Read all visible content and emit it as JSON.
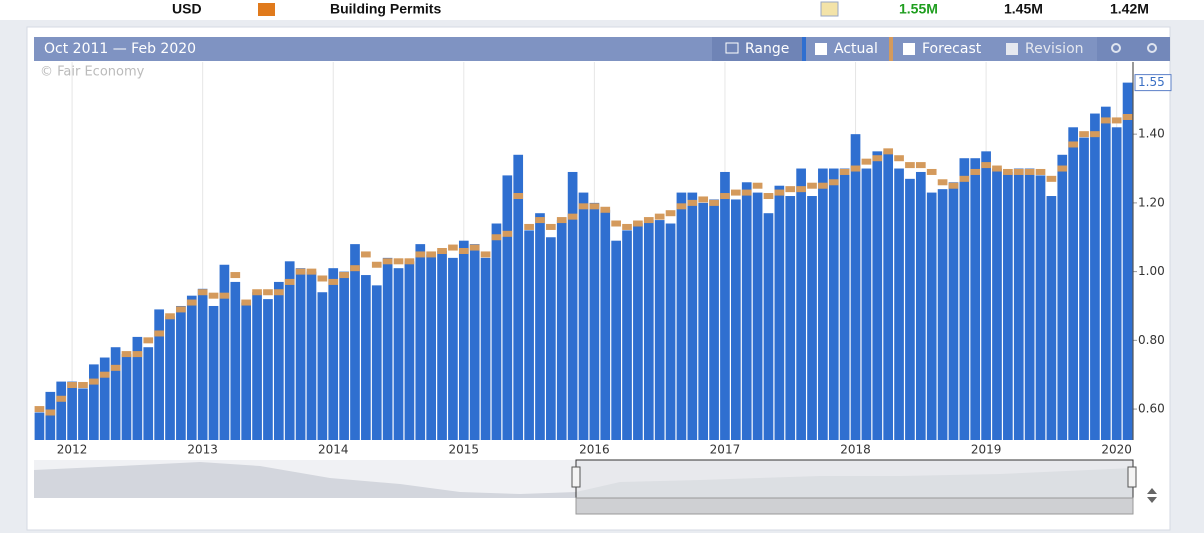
{
  "header": {
    "currency": "USD",
    "event": "Building Permits",
    "actual": "1.55M",
    "forecast": "1.45M",
    "previous": "1.42M"
  },
  "toolbar": {
    "range_text": "Oct 2011 — Feb 2020",
    "range_button": "Range",
    "revision": "Revision"
  },
  "chart_data": {
    "type": "bar",
    "watermark": "© Fair Economy",
    "categories": [
      null,
      null,
      null,
      "2012",
      null,
      null,
      null,
      null,
      null,
      null,
      null,
      null,
      null,
      null,
      null,
      "2013",
      null,
      null,
      null,
      null,
      null,
      null,
      null,
      null,
      null,
      null,
      null,
      "2014",
      null,
      null,
      null,
      null,
      null,
      null,
      null,
      null,
      null,
      null,
      null,
      "2015",
      null,
      null,
      null,
      null,
      null,
      null,
      null,
      null,
      null,
      null,
      null,
      "2016",
      null,
      null,
      null,
      null,
      null,
      null,
      null,
      null,
      null,
      null,
      null,
      "2017",
      null,
      null,
      null,
      null,
      null,
      null,
      null,
      null,
      null,
      null,
      null,
      "2018",
      null,
      null,
      null,
      null,
      null,
      null,
      null,
      null,
      null,
      null,
      null,
      "2019",
      null,
      null,
      null,
      null,
      null,
      null,
      null,
      null,
      null,
      null,
      null,
      "2020",
      null
    ],
    "series": [
      {
        "name": "Actual",
        "color": "#2f6fd0",
        "values": [
          0.59,
          0.65,
          0.68,
          0.68,
          0.66,
          0.73,
          0.75,
          0.78,
          0.76,
          0.81,
          0.78,
          0.89,
          0.87,
          0.9,
          0.93,
          0.95,
          0.9,
          1.02,
          0.97,
          0.91,
          0.94,
          0.92,
          0.97,
          1.03,
          1.01,
          1.0,
          0.94,
          1.01,
          1.0,
          1.08,
          0.99,
          0.96,
          1.04,
          1.01,
          1.03,
          1.08,
          1.05,
          1.06,
          1.04,
          1.09,
          1.08,
          1.04,
          1.14,
          1.28,
          1.34,
          1.12,
          1.17,
          1.1,
          1.15,
          1.29,
          1.23,
          1.2,
          1.18,
          1.09,
          1.12,
          1.14,
          1.15,
          1.15,
          1.14,
          1.23,
          1.23,
          1.2,
          1.21,
          1.29,
          1.21,
          1.26,
          1.23,
          1.17,
          1.25,
          1.22,
          1.3,
          1.22,
          1.3,
          1.3,
          1.3,
          1.4,
          1.3,
          1.35,
          1.35,
          1.3,
          1.27,
          1.29,
          1.23,
          1.24,
          1.26,
          1.33,
          1.33,
          1.35,
          1.3,
          1.29,
          1.3,
          1.3,
          1.28,
          1.22,
          1.34,
          1.42,
          1.39,
          1.46,
          1.48,
          1.42,
          1.55
        ]
      },
      {
        "name": "Forecast",
        "color": "#d49a5c",
        "values": [
          0.6,
          0.59,
          0.63,
          0.67,
          0.67,
          0.68,
          0.7,
          0.72,
          0.76,
          0.76,
          0.8,
          0.82,
          0.87,
          0.89,
          0.91,
          0.94,
          0.93,
          0.93,
          0.99,
          0.91,
          0.94,
          0.94,
          0.94,
          0.97,
          1.0,
          1.0,
          0.98,
          0.97,
          0.99,
          1.01,
          1.05,
          1.02,
          1.03,
          1.03,
          1.03,
          1.05,
          1.05,
          1.06,
          1.07,
          1.06,
          1.07,
          1.05,
          1.1,
          1.11,
          1.22,
          1.13,
          1.15,
          1.13,
          1.15,
          1.16,
          1.19,
          1.19,
          1.18,
          1.14,
          1.13,
          1.14,
          1.15,
          1.16,
          1.17,
          1.19,
          1.2,
          1.21,
          1.2,
          1.22,
          1.23,
          1.23,
          1.25,
          1.22,
          1.23,
          1.24,
          1.24,
          1.25,
          1.25,
          1.26,
          1.29,
          1.3,
          1.32,
          1.33,
          1.35,
          1.33,
          1.31,
          1.31,
          1.29,
          1.26,
          1.25,
          1.27,
          1.29,
          1.31,
          1.3,
          1.29,
          1.29,
          1.29,
          1.29,
          1.27,
          1.3,
          1.37,
          1.4,
          1.4,
          1.44,
          1.44,
          1.45
        ]
      }
    ],
    "ylim": [
      0.51,
      1.61
    ],
    "yticks": [
      {
        "value": 0.6,
        "label": "0.60"
      },
      {
        "value": 0.8,
        "label": "0.80"
      },
      {
        "value": 1.0,
        "label": "1.00"
      },
      {
        "value": 1.2,
        "label": "1.20"
      },
      {
        "value": 1.4,
        "label": "1.40"
      }
    ],
    "grid": true
  }
}
